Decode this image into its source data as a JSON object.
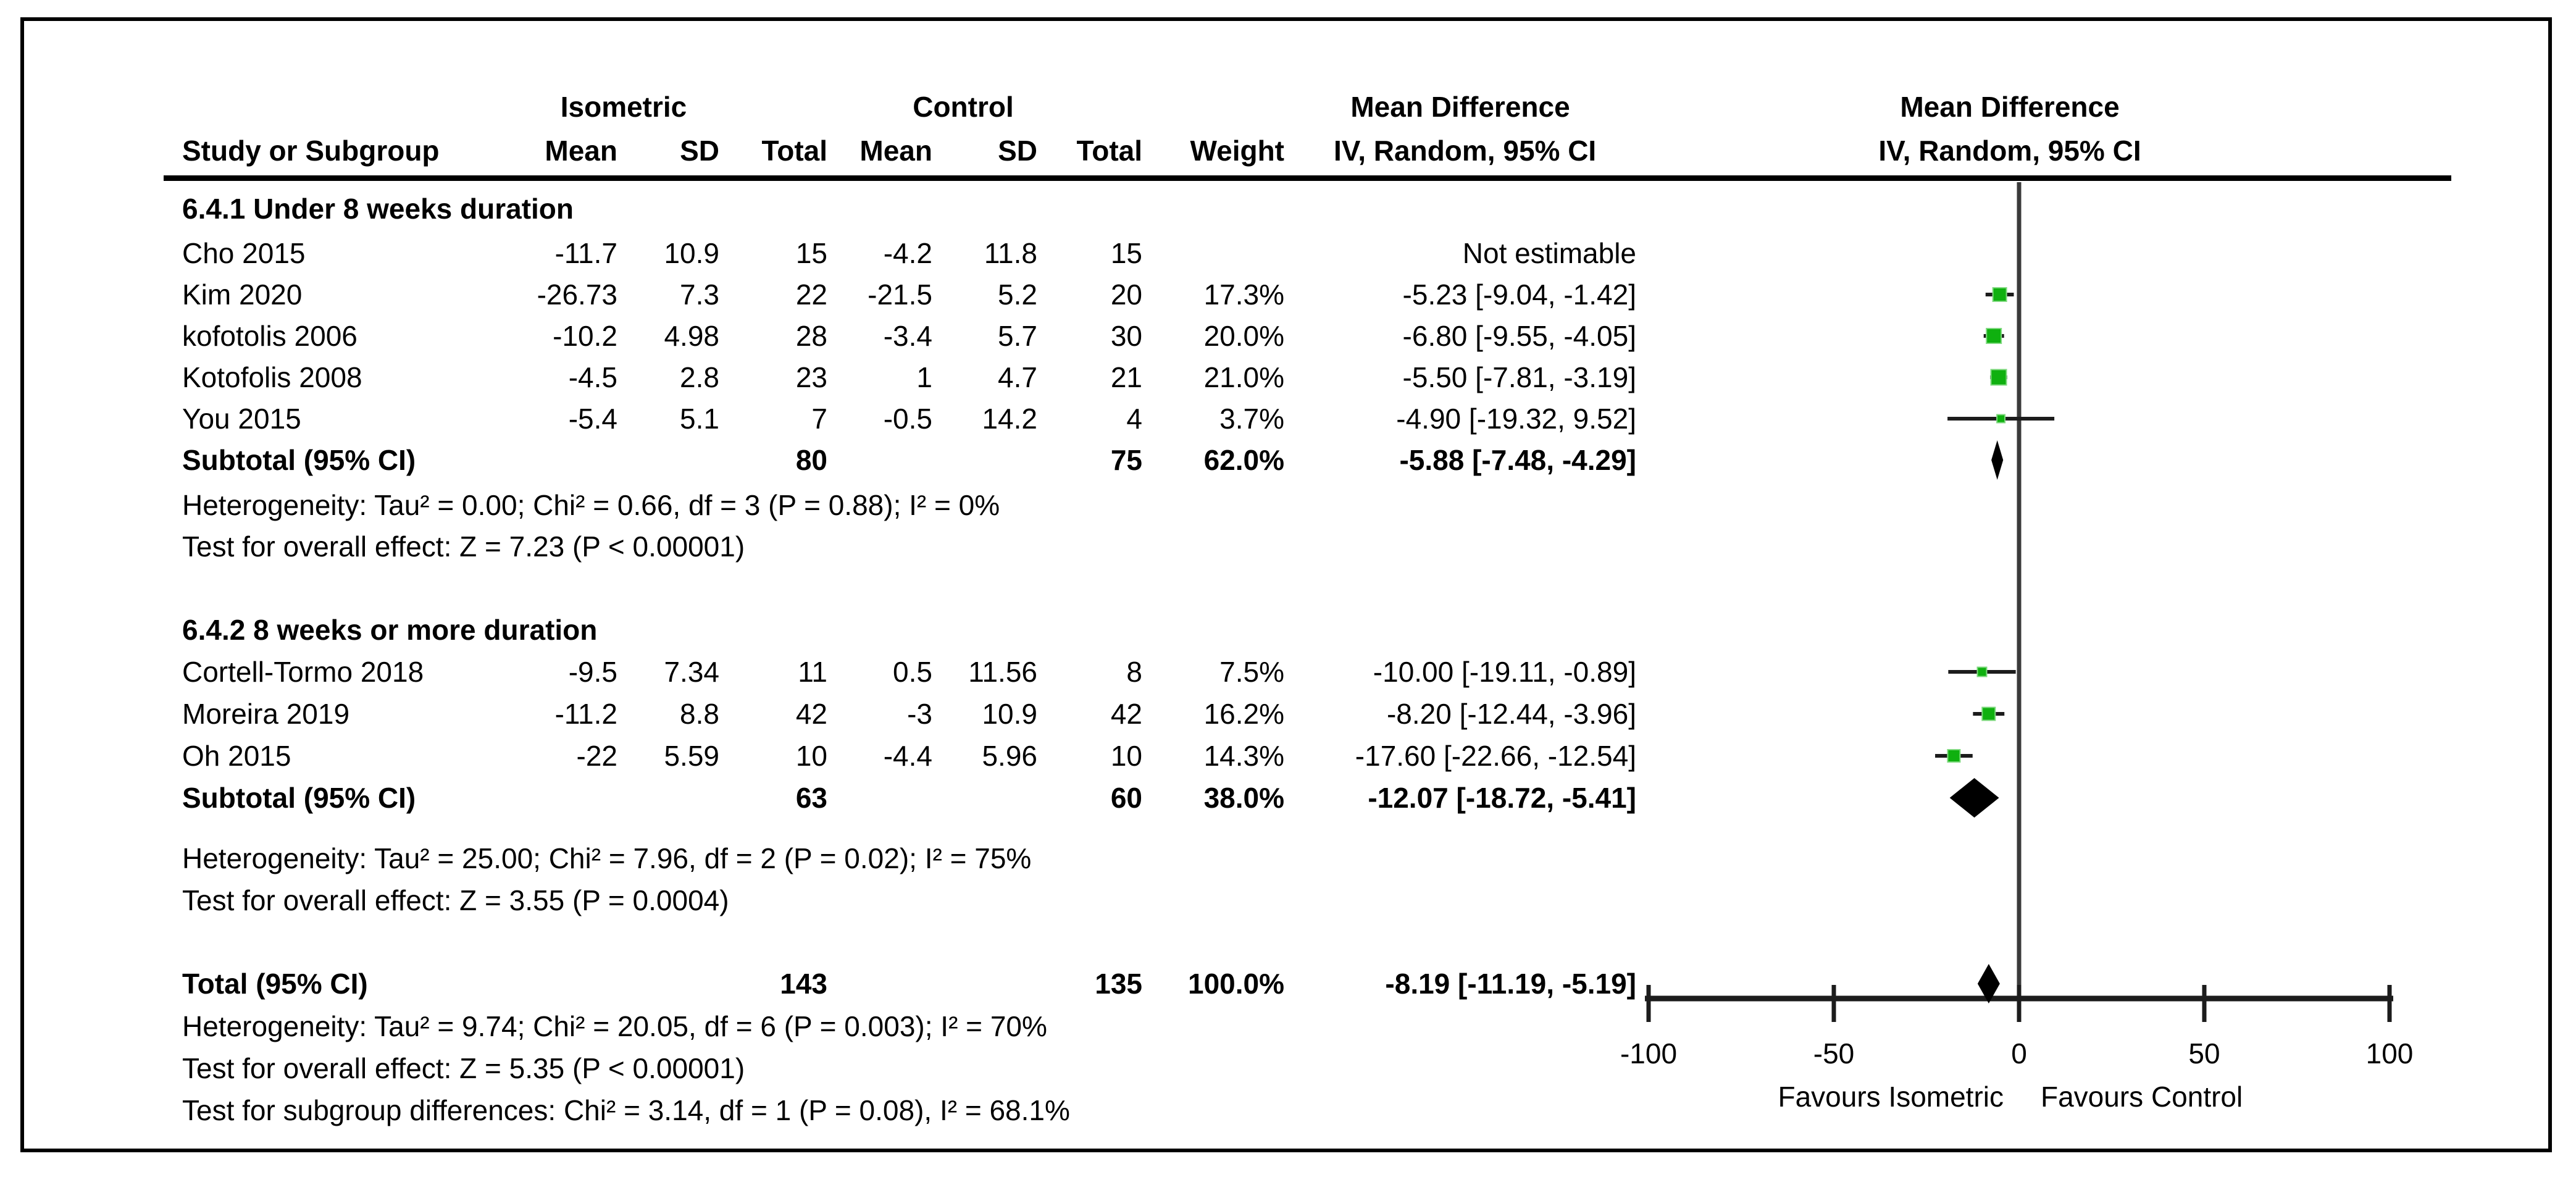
{
  "chart_data": {
    "type": "forest",
    "effect_label": "Mean Difference",
    "method_label": "IV, Random, 95% CI",
    "group1_label": "Isometric",
    "group2_label": "Control",
    "columns": {
      "study": "Study or Subgroup",
      "mean1": "Mean",
      "sd1": "SD",
      "total1": "Total",
      "mean2": "Mean",
      "sd2": "SD",
      "total2": "Total",
      "weight": "Weight",
      "ci": "IV, Random, 95% CI"
    },
    "colors": {
      "marker_green": "#0FB00F",
      "marker_edge": "#7FD97F",
      "diamond_black": "#000000",
      "ci_line": "#1c1c1c",
      "zero_line": "#3a3a3a",
      "axis": "#1c1c1c"
    },
    "axis": {
      "min": -100,
      "max": 100,
      "ticks": [
        -100,
        -50,
        0,
        50,
        100
      ],
      "favours_left": "Favours Isometric",
      "favours_right": "Favours Control"
    },
    "rows": [
      {
        "type": "subgroup_header",
        "label": "6.4.1 Under 8 weeks duration"
      },
      {
        "type": "study",
        "study": "Cho 2015",
        "mean1": "-11.7",
        "sd1": "10.9",
        "total1": "15",
        "mean2": "-4.2",
        "sd2": "11.8",
        "total2": "15",
        "weight": "",
        "ci_text": "Not estimable",
        "estimable": false
      },
      {
        "type": "study",
        "study": "Kim 2020",
        "mean1": "-26.73",
        "sd1": "7.3",
        "total1": "22",
        "mean2": "-21.5",
        "sd2": "5.2",
        "total2": "20",
        "weight": "17.3%",
        "ci_text": "-5.23 [-9.04, -1.42]",
        "estimable": true,
        "md": -5.23,
        "lo": -9.04,
        "hi": -1.42,
        "weight_pct": 17.3
      },
      {
        "type": "study",
        "study": "kofotolis 2006",
        "mean1": "-10.2",
        "sd1": "4.98",
        "total1": "28",
        "mean2": "-3.4",
        "sd2": "5.7",
        "total2": "30",
        "weight": "20.0%",
        "ci_text": "-6.80 [-9.55, -4.05]",
        "estimable": true,
        "md": -6.8,
        "lo": -9.55,
        "hi": -4.05,
        "weight_pct": 20.0
      },
      {
        "type": "study",
        "study": "Kotofolis 2008",
        "mean1": "-4.5",
        "sd1": "2.8",
        "total1": "23",
        "mean2": "1",
        "sd2": "4.7",
        "total2": "21",
        "weight": "21.0%",
        "ci_text": "-5.50 [-7.81, -3.19]",
        "estimable": true,
        "md": -5.5,
        "lo": -7.81,
        "hi": -3.19,
        "weight_pct": 21.0
      },
      {
        "type": "study",
        "study": "You 2015",
        "mean1": "-5.4",
        "sd1": "5.1",
        "total1": "7",
        "mean2": "-0.5",
        "sd2": "14.2",
        "total2": "4",
        "weight": "3.7%",
        "ci_text": "-4.90 [-19.32, 9.52]",
        "estimable": true,
        "md": -4.9,
        "lo": -19.32,
        "hi": 9.52,
        "weight_pct": 3.7
      },
      {
        "type": "subtotal",
        "study": "Subtotal (95% CI)",
        "total1": "80",
        "total2": "75",
        "weight": "62.0%",
        "ci_text": "-5.88 [-7.48, -4.29]",
        "md": -5.88,
        "lo": -7.48,
        "hi": -4.29
      },
      {
        "type": "note",
        "text": "Heterogeneity: Tau² = 0.00; Chi² = 0.66, df = 3 (P = 0.88); I² = 0%"
      },
      {
        "type": "note",
        "text": "Test for overall effect: Z = 7.23 (P < 0.00001)"
      },
      {
        "type": "subgroup_header",
        "label": "6.4.2 8 weeks or more duration"
      },
      {
        "type": "study",
        "study": "Cortell-Tormo 2018",
        "mean1": "-9.5",
        "sd1": "7.34",
        "total1": "11",
        "mean2": "0.5",
        "sd2": "11.56",
        "total2": "8",
        "weight": "7.5%",
        "ci_text": "-10.00 [-19.11, -0.89]",
        "estimable": true,
        "md": -10.0,
        "lo": -19.11,
        "hi": -0.89,
        "weight_pct": 7.5
      },
      {
        "type": "study",
        "study": "Moreira 2019",
        "mean1": "-11.2",
        "sd1": "8.8",
        "total1": "42",
        "mean2": "-3",
        "sd2": "10.9",
        "total2": "42",
        "weight": "16.2%",
        "ci_text": "-8.20 [-12.44, -3.96]",
        "estimable": true,
        "md": -8.2,
        "lo": -12.44,
        "hi": -3.96,
        "weight_pct": 16.2
      },
      {
        "type": "study",
        "study": "Oh 2015",
        "mean1": "-22",
        "sd1": "5.59",
        "total1": "10",
        "mean2": "-4.4",
        "sd2": "5.96",
        "total2": "10",
        "weight": "14.3%",
        "ci_text": "-17.60 [-22.66, -12.54]",
        "estimable": true,
        "md": -17.6,
        "lo": -22.66,
        "hi": -12.54,
        "weight_pct": 14.3
      },
      {
        "type": "subtotal",
        "study": "Subtotal (95% CI)",
        "total1": "63",
        "total2": "60",
        "weight": "38.0%",
        "ci_text": "-12.07 [-18.72, -5.41]",
        "md": -12.07,
        "lo": -18.72,
        "hi": -5.41
      },
      {
        "type": "note",
        "text": "Heterogeneity: Tau² = 25.00; Chi² = 7.96, df = 2 (P = 0.02); I² = 75%"
      },
      {
        "type": "note",
        "text": "Test for overall effect: Z = 3.55 (P = 0.0004)"
      },
      {
        "type": "total",
        "study": "Total (95% CI)",
        "total1": "143",
        "total2": "135",
        "weight": "100.0%",
        "ci_text": "-8.19 [-11.19, -5.19]",
        "md": -8.19,
        "lo": -11.19,
        "hi": -5.19
      },
      {
        "type": "note",
        "text": "Heterogeneity: Tau² = 9.74; Chi² = 20.05, df = 6 (P = 0.003); I² = 70%"
      },
      {
        "type": "note",
        "text": "Test for overall effect: Z = 5.35 (P < 0.00001)"
      },
      {
        "type": "note",
        "text": "Test for subgroup differences: Chi² = 3.14, df = 1 (P = 0.08), I² = 68.1%"
      }
    ]
  }
}
